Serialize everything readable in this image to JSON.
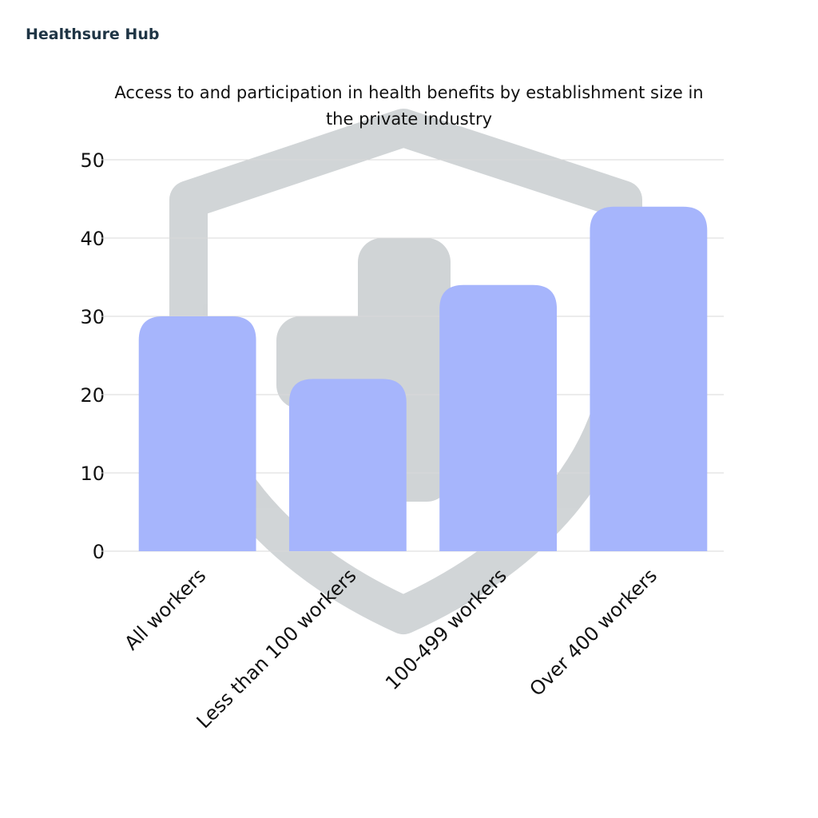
{
  "brand": "Healthsure Hub",
  "chart_data": {
    "type": "bar",
    "title": "Access to and participation in health benefits by establishment size in the private industry",
    "categories": [
      "All workers",
      "Less than 100 workers",
      "100-499 workers",
      "Over 400 workers"
    ],
    "values": [
      30,
      22,
      34,
      44
    ],
    "color": "#a6b5fc",
    "ylim": [
      0,
      50
    ],
    "yticks": [
      0,
      10,
      20,
      30,
      40,
      50
    ],
    "grid": true
  }
}
